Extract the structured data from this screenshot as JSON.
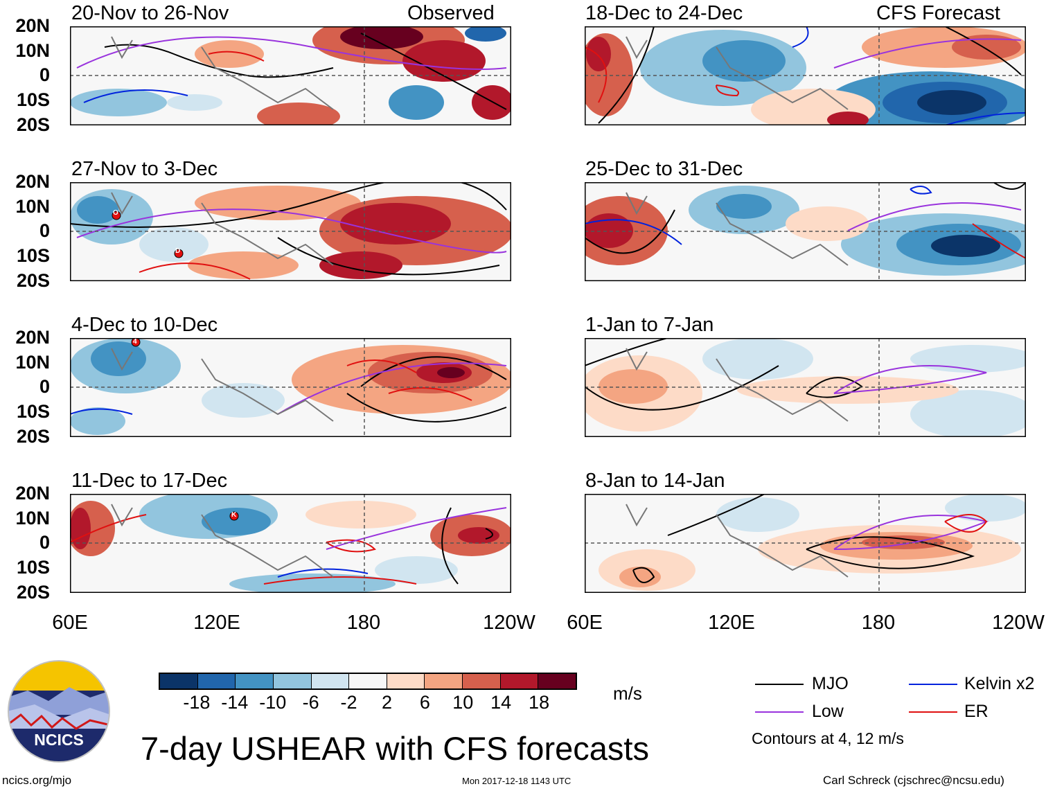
{
  "panels_left": [
    {
      "title": "20-Nov to 26-Nov",
      "tag": "Observed"
    },
    {
      "title": "27-Nov to 3-Dec",
      "tag": ""
    },
    {
      "title": "4-Dec to 10-Dec",
      "tag": ""
    },
    {
      "title": "11-Dec to 17-Dec",
      "tag": ""
    }
  ],
  "panels_right": [
    {
      "title": "18-Dec to 24-Dec",
      "tag": "CFS Forecast"
    },
    {
      "title": "25-Dec to 31-Dec",
      "tag": ""
    },
    {
      "title": "1-Jan to 7-Jan",
      "tag": ""
    },
    {
      "title": "8-Jan to 14-Jan",
      "tag": ""
    }
  ],
  "lat_labels": [
    "20N",
    "10N",
    "0",
    "10S",
    "20S"
  ],
  "lon_labels": [
    "60E",
    "120E",
    "180",
    "120W"
  ],
  "storm_markers": [
    {
      "label": "O",
      "panel": 1
    },
    {
      "label": "D",
      "panel": 1
    },
    {
      "label": "4",
      "panel": 2
    },
    {
      "label": "K",
      "panel": 3
    }
  ],
  "colorbar": {
    "labels": [
      "-18",
      "-14",
      "-10",
      "-6",
      "-2",
      "2",
      "6",
      "10",
      "14",
      "18"
    ],
    "colors": [
      "#0b3468",
      "#2166ac",
      "#4393c3",
      "#92c5de",
      "#d1e5f0",
      "#f7f7f7",
      "#fddbc7",
      "#f4a582",
      "#d6604d",
      "#b2182b",
      "#67001f"
    ],
    "units": "m/s"
  },
  "title": "7-day USHEAR with CFS forecasts",
  "legend": {
    "items": [
      {
        "label": "MJO",
        "color": "#000000"
      },
      {
        "label": "Low",
        "color": "#9933dd"
      },
      {
        "label": "Kelvin x2",
        "color": "#0022dd"
      },
      {
        "label": "ER",
        "color": "#e01010"
      }
    ],
    "note": "Contours at 4, 12 m/s"
  },
  "logo_text": "NCICS",
  "footer": {
    "left": "ncics.org/mjo",
    "center": "Mon 2017-12-18 1143 UTC",
    "right": "Carl Schreck (cjschrec@ncsu.edu)"
  }
}
